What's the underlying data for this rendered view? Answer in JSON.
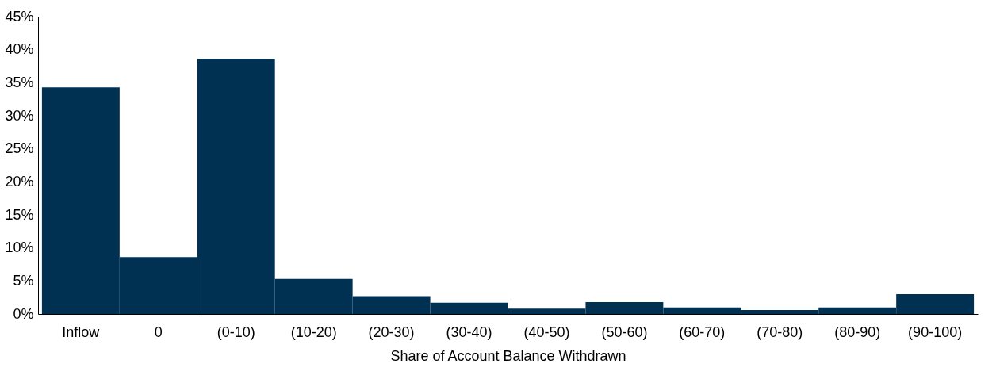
{
  "chart_data": {
    "type": "bar",
    "xlabel": "Share of Account Balance Withdrawn",
    "categories": [
      "Inflow",
      "0",
      "(0-10)",
      "(10-20)",
      "(20-30)",
      "(30-40)",
      "(40-50)",
      "(50-60)",
      "(60-70)",
      "(70-80)",
      "(80-90)",
      "(90-100)"
    ],
    "values": [
      34.3,
      8.6,
      38.6,
      5.3,
      2.7,
      1.7,
      0.8,
      1.8,
      1.0,
      0.6,
      1.0,
      3.0
    ],
    "color": "#003153",
    "ylim": [
      0,
      45
    ],
    "yticks": [
      {
        "value": 0,
        "label": "0%"
      },
      {
        "value": 5,
        "label": "5%"
      },
      {
        "value": 10,
        "label": "10%"
      },
      {
        "value": 15,
        "label": "15%"
      },
      {
        "value": 20,
        "label": "20%"
      },
      {
        "value": 25,
        "label": "25%"
      },
      {
        "value": 30,
        "label": "30%"
      },
      {
        "value": 35,
        "label": "35%"
      },
      {
        "value": 40,
        "label": "40%"
      },
      {
        "value": 45,
        "label": "45%"
      }
    ],
    "grid": false
  }
}
